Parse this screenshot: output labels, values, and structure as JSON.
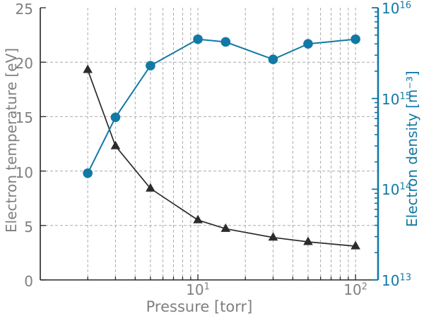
{
  "figure": {
    "background": "#ffffff",
    "accent_blue": "#1279a5",
    "axis_dark": "#262626",
    "label_gray": "#7f7f7f",
    "grid_gray": "#ababab",
    "series_dark": "#2b2b2b"
  },
  "chart_data": {
    "type": "line",
    "title": "",
    "grid": true,
    "legend": false,
    "x_axis": {
      "title": "Pressure [torr]",
      "scale": "log",
      "min": 1,
      "max": 139,
      "major_ticks": [
        {
          "value": 10,
          "base": "10",
          "sup": "1"
        },
        {
          "value": 100,
          "base": "10",
          "sup": "2"
        }
      ]
    },
    "left_axis": {
      "title": "Electron temperature [eV]",
      "scale": "linear",
      "min": 0,
      "max": 25,
      "ticks": [
        0,
        5,
        10,
        15,
        20,
        25
      ],
      "grid_ticks": [
        5,
        10,
        15,
        20
      ]
    },
    "right_axis": {
      "title": "Electron density [m⁻³]",
      "scale": "log",
      "min": 10000000000000.0,
      "max": 1e+16,
      "major_ticks": [
        {
          "exponent": 16,
          "base": "10",
          "sup": "16"
        },
        {
          "exponent": 15,
          "base": "10",
          "sup": "15"
        },
        {
          "exponent": 14,
          "base": "10",
          "sup": "14"
        },
        {
          "exponent": 13,
          "base": "10",
          "sup": "13"
        }
      ]
    },
    "series": [
      {
        "name": "electron-temperature",
        "axis": "left",
        "marker": "triangle",
        "color": "#2b2b2b",
        "x": [
          2,
          3,
          5,
          10,
          15,
          30,
          50,
          100
        ],
        "y": [
          19.3,
          12.3,
          8.4,
          5.5,
          4.7,
          3.9,
          3.5,
          3.1
        ]
      },
      {
        "name": "electron-density",
        "axis": "right",
        "marker": "circle",
        "color": "#1279a5",
        "x": [
          2,
          3,
          5,
          10,
          15,
          30,
          50,
          100
        ],
        "y": [
          150000000000000.0,
          620000000000000.0,
          2300000000000000.0,
          4500000000000000.0,
          4200000000000000.0,
          2700000000000000.0,
          4000000000000000.0,
          4500000000000000.0
        ]
      }
    ]
  }
}
